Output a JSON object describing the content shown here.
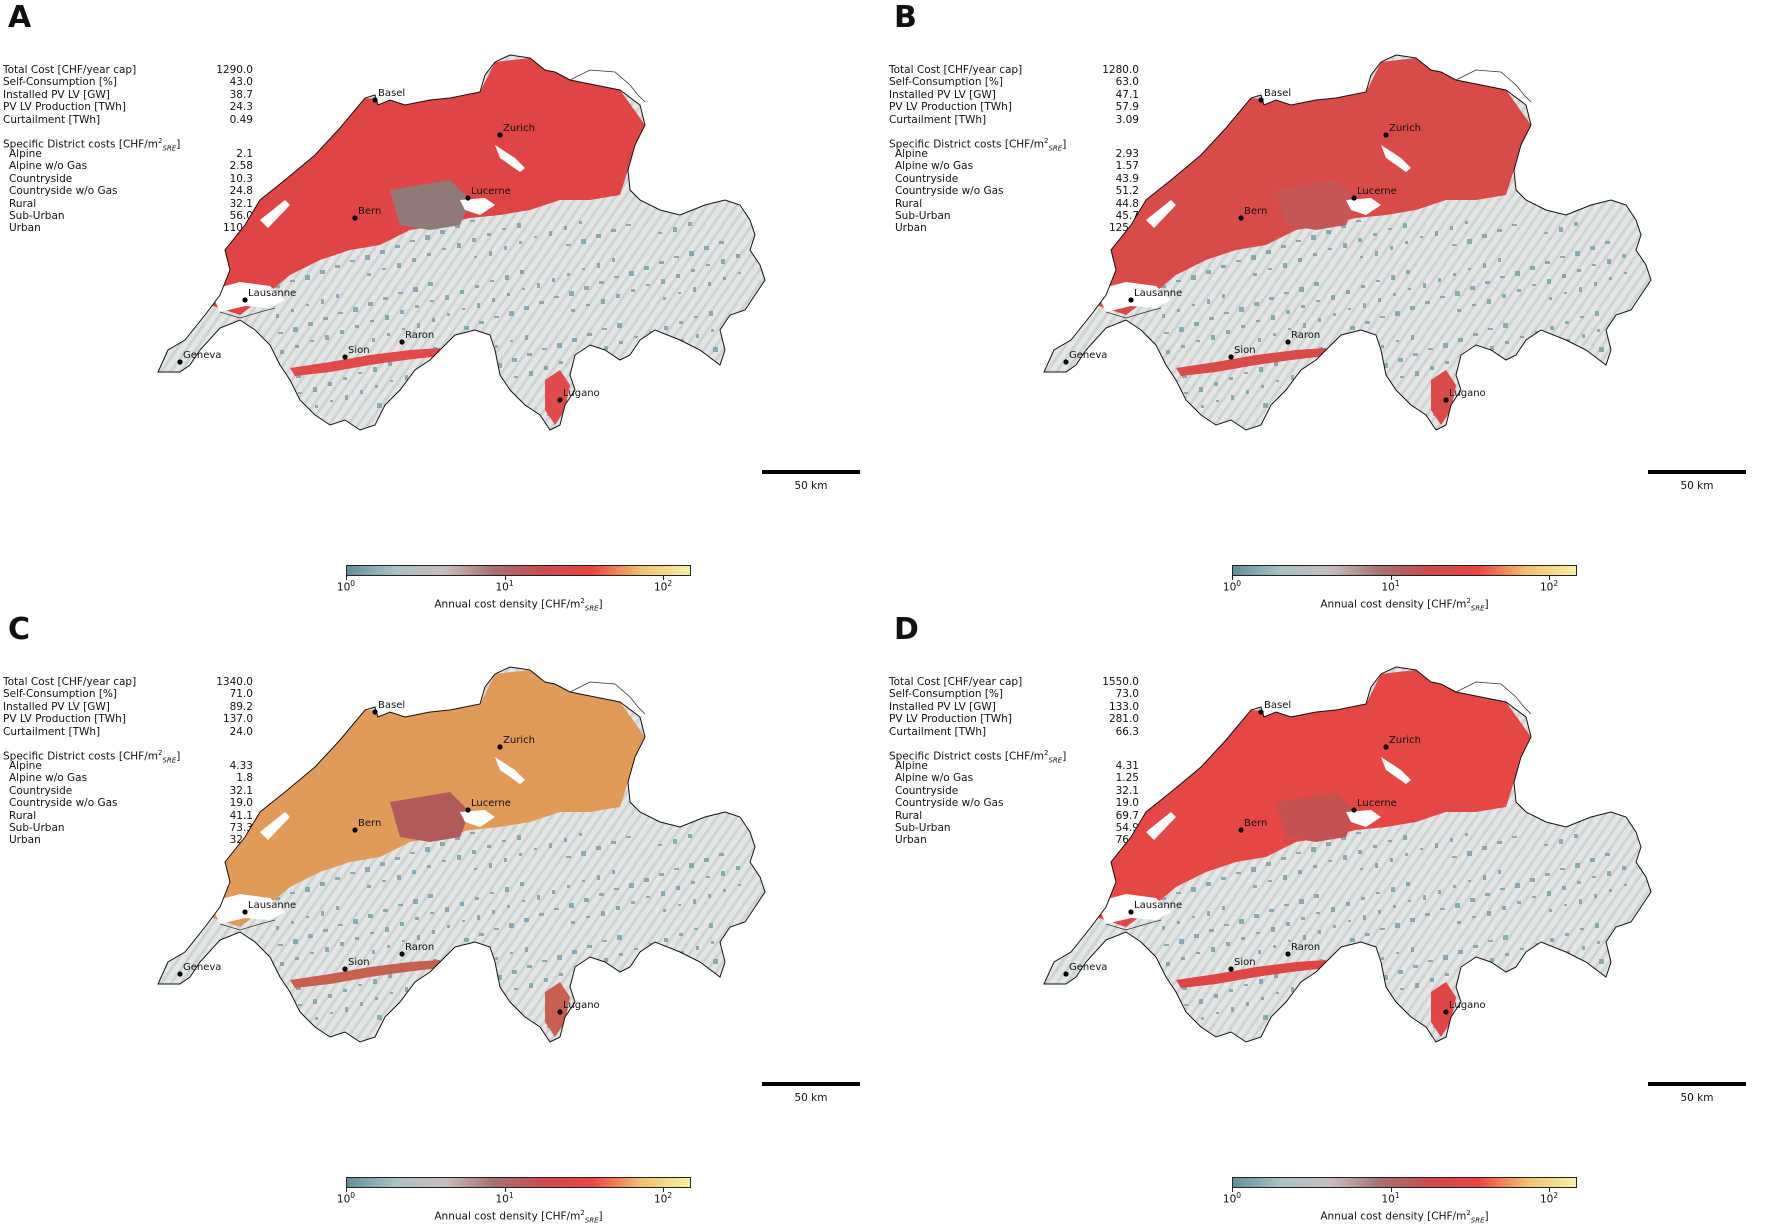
{
  "units": {
    "colorbar_label": "Annual cost density [CHF/m",
    "colorbar_label_sup": "2",
    "colorbar_label_sub": "SRE",
    "colorbar_label_end": "]",
    "district_heading": "Specific District costs [CHF/m",
    "district_heading_sup": "2",
    "district_heading_sub": "SRE",
    "district_heading_end": "]",
    "scalebar_label": "50 km"
  },
  "colorbar": {
    "scale": "log",
    "range": [
      1,
      150
    ],
    "ticks": [
      {
        "base": "10",
        "exp": "0",
        "value": 1
      },
      {
        "base": "10",
        "exp": "1",
        "value": 10
      },
      {
        "base": "10",
        "exp": "2",
        "value": 100
      }
    ],
    "colors": [
      "#5f8f99",
      "#a9c2c6",
      "#c9bcbd",
      "#a6706f",
      "#cc4c4e",
      "#ea4442",
      "#f2c070",
      "#f7f0a8"
    ]
  },
  "cities": [
    {
      "name": "Basel"
    },
    {
      "name": "Zurich"
    },
    {
      "name": "Lucerne"
    },
    {
      "name": "Bern"
    },
    {
      "name": "Lausanne"
    },
    {
      "name": "Geneva"
    },
    {
      "name": "Sion"
    },
    {
      "name": "Raron"
    },
    {
      "name": "Lugano"
    }
  ],
  "panels": [
    {
      "letter": "A",
      "fill_colors": {
        "north": "#e04545",
        "mid": "#8f7a78",
        "alps": "#7aa0a8",
        "south": "#e04a4a"
      },
      "stats": [
        {
          "label": "Total Cost [CHF/year cap]",
          "value": "1290.0"
        },
        {
          "label": "Self-Consumption [%]",
          "value": "43.0"
        },
        {
          "label": "Installed PV LV [GW]",
          "value": "38.7"
        },
        {
          "label": "PV LV Production [TWh]",
          "value": "24.3"
        },
        {
          "label": "Curtailment [TWh]",
          "value": "0.49"
        }
      ],
      "districts": [
        {
          "label": "Alpine",
          "value": "2.1"
        },
        {
          "label": "Alpine w/o Gas",
          "value": "2.58"
        },
        {
          "label": "Countryside",
          "value": "10.3"
        },
        {
          "label": "Countryside w/o Gas",
          "value": "24.8"
        },
        {
          "label": "Rural",
          "value": "32.1"
        },
        {
          "label": "Sub-Urban",
          "value": "56.0"
        },
        {
          "label": "Urban",
          "value": "110.0"
        }
      ]
    },
    {
      "letter": "B",
      "fill_colors": {
        "north": "#d94b48",
        "mid": "#c45656",
        "alps": "#7aa0a8",
        "south": "#d94b48"
      },
      "stats": [
        {
          "label": "Total Cost [CHF/year cap]",
          "value": "1280.0"
        },
        {
          "label": "Self-Consumption [%]",
          "value": "63.0"
        },
        {
          "label": "Installed PV LV [GW]",
          "value": "47.1"
        },
        {
          "label": "PV LV Production [TWh]",
          "value": "57.9"
        },
        {
          "label": "Curtailment [TWh]",
          "value": "3.09"
        }
      ],
      "districts": [
        {
          "label": "Alpine",
          "value": "2.93"
        },
        {
          "label": "Alpine w/o Gas",
          "value": "1.57"
        },
        {
          "label": "Countryside",
          "value": "43.9"
        },
        {
          "label": "Countryside w/o Gas",
          "value": "51.2"
        },
        {
          "label": "Rural",
          "value": "44.8"
        },
        {
          "label": "Sub-Urban",
          "value": "45.7"
        },
        {
          "label": "Urban",
          "value": "125.0"
        }
      ]
    },
    {
      "letter": "C",
      "fill_colors": {
        "north": "#e09a5a",
        "mid": "#b05a5a",
        "alps": "#7aa0a8",
        "south": "#c86050"
      },
      "stats": [
        {
          "label": "Total Cost [CHF/year cap]",
          "value": "1340.0"
        },
        {
          "label": "Self-Consumption [%]",
          "value": "71.0"
        },
        {
          "label": "Installed PV LV [GW]",
          "value": "89.2"
        },
        {
          "label": "PV LV Production [TWh]",
          "value": "137.0"
        },
        {
          "label": "Curtailment [TWh]",
          "value": "24.0"
        }
      ],
      "districts": [
        {
          "label": "Alpine",
          "value": "4.33"
        },
        {
          "label": "Alpine w/o Gas",
          "value": "1.8"
        },
        {
          "label": "Countryside",
          "value": "32.1"
        },
        {
          "label": "Countryside w/o Gas",
          "value": "19.0"
        },
        {
          "label": "Rural",
          "value": "41.1"
        },
        {
          "label": "Sub-Urban",
          "value": "73.3"
        },
        {
          "label": "Urban",
          "value": "32.5"
        }
      ]
    },
    {
      "letter": "D",
      "fill_colors": {
        "north": "#e54646",
        "mid": "#c45050",
        "alps": "#7aa0a8",
        "south": "#e04545"
      },
      "stats": [
        {
          "label": "Total Cost [CHF/year cap]",
          "value": "1550.0"
        },
        {
          "label": "Self-Consumption [%]",
          "value": "73.0"
        },
        {
          "label": "Installed PV LV [GW]",
          "value": "133.0"
        },
        {
          "label": "PV LV Production [TWh]",
          "value": "281.0"
        },
        {
          "label": "Curtailment [TWh]",
          "value": "66.3"
        }
      ],
      "districts": [
        {
          "label": "Alpine",
          "value": "4.31"
        },
        {
          "label": "Alpine w/o Gas",
          "value": "1.25"
        },
        {
          "label": "Countryside",
          "value": "32.1"
        },
        {
          "label": "Countryside w/o Gas",
          "value": "19.0"
        },
        {
          "label": "Rural",
          "value": "69.7"
        },
        {
          "label": "Sub-Urban",
          "value": "54.9"
        },
        {
          "label": "Urban",
          "value": "76.6"
        }
      ]
    }
  ]
}
